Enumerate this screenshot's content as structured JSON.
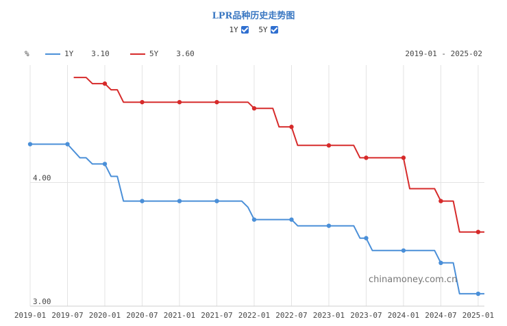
{
  "title": "LPR品种历史走势图",
  "toggles": [
    {
      "label": "1Y",
      "checked": true
    },
    {
      "label": "5Y",
      "checked": true
    }
  ],
  "unit": "%",
  "date_range": "2019-01 - 2025-02",
  "watermark": "chinamoney.com.cn",
  "legend": [
    {
      "name": "1Y",
      "value": "3.10",
      "color": "#4a8fd8"
    },
    {
      "name": "5Y",
      "value": "3.60",
      "color": "#d62a2a"
    }
  ],
  "chart_data": {
    "type": "line",
    "x_ticks": [
      "2019-01",
      "2019-07",
      "2020-01",
      "2020-07",
      "2021-01",
      "2021-07",
      "2022-01",
      "2022-07",
      "2023-01",
      "2023-07",
      "2024-01",
      "2024-07",
      "2025-01"
    ],
    "y_ticks": [
      {
        "value": 4.0,
        "label": "4.00"
      },
      {
        "value": 3.0,
        "label": "3.00"
      }
    ],
    "xlim": [
      "2019-01",
      "2025-02"
    ],
    "ylim": [
      3.0,
      4.95
    ],
    "grid": true,
    "series": [
      {
        "name": "1Y",
        "color": "#4a8fd8",
        "points": [
          {
            "x": "2019-01",
            "y": 4.31,
            "marker": true
          },
          {
            "x": "2019-07",
            "y": 4.31,
            "marker": true
          },
          {
            "x": "2019-09",
            "y": 4.2
          },
          {
            "x": "2019-10",
            "y": 4.2
          },
          {
            "x": "2019-11",
            "y": 4.15
          },
          {
            "x": "2020-01",
            "y": 4.15,
            "marker": true
          },
          {
            "x": "2020-02",
            "y": 4.05
          },
          {
            "x": "2020-03",
            "y": 4.05
          },
          {
            "x": "2020-04",
            "y": 3.85
          },
          {
            "x": "2020-07",
            "y": 3.85,
            "marker": true
          },
          {
            "x": "2021-01",
            "y": 3.85,
            "marker": true
          },
          {
            "x": "2021-07",
            "y": 3.85,
            "marker": true
          },
          {
            "x": "2021-11",
            "y": 3.85
          },
          {
            "x": "2021-12",
            "y": 3.8
          },
          {
            "x": "2022-01",
            "y": 3.7,
            "marker": true
          },
          {
            "x": "2022-07",
            "y": 3.7,
            "marker": true
          },
          {
            "x": "2022-08",
            "y": 3.65
          },
          {
            "x": "2023-01",
            "y": 3.65,
            "marker": true
          },
          {
            "x": "2023-05",
            "y": 3.65
          },
          {
            "x": "2023-06",
            "y": 3.55
          },
          {
            "x": "2023-07",
            "y": 3.55,
            "marker": true
          },
          {
            "x": "2023-08",
            "y": 3.45
          },
          {
            "x": "2024-01",
            "y": 3.45,
            "marker": true
          },
          {
            "x": "2024-06",
            "y": 3.45
          },
          {
            "x": "2024-07",
            "y": 3.35,
            "marker": true
          },
          {
            "x": "2024-09",
            "y": 3.35
          },
          {
            "x": "2024-10",
            "y": 3.1
          },
          {
            "x": "2025-01",
            "y": 3.1,
            "marker": true
          },
          {
            "x": "2025-02",
            "y": 3.1
          }
        ]
      },
      {
        "name": "5Y",
        "color": "#d62a2a",
        "points": [
          {
            "x": "2019-08",
            "y": 4.85
          },
          {
            "x": "2019-10",
            "y": 4.85
          },
          {
            "x": "2019-11",
            "y": 4.8
          },
          {
            "x": "2020-01",
            "y": 4.8,
            "marker": true
          },
          {
            "x": "2020-02",
            "y": 4.75
          },
          {
            "x": "2020-03",
            "y": 4.75
          },
          {
            "x": "2020-04",
            "y": 4.65
          },
          {
            "x": "2020-07",
            "y": 4.65,
            "marker": true
          },
          {
            "x": "2021-01",
            "y": 4.65,
            "marker": true
          },
          {
            "x": "2021-07",
            "y": 4.65,
            "marker": true
          },
          {
            "x": "2021-12",
            "y": 4.65
          },
          {
            "x": "2022-01",
            "y": 4.6,
            "marker": true
          },
          {
            "x": "2022-04",
            "y": 4.6
          },
          {
            "x": "2022-05",
            "y": 4.45
          },
          {
            "x": "2022-07",
            "y": 4.45,
            "marker": true
          },
          {
            "x": "2022-08",
            "y": 4.3
          },
          {
            "x": "2023-01",
            "y": 4.3,
            "marker": true
          },
          {
            "x": "2023-05",
            "y": 4.3
          },
          {
            "x": "2023-06",
            "y": 4.2
          },
          {
            "x": "2023-07",
            "y": 4.2,
            "marker": true
          },
          {
            "x": "2024-01",
            "y": 4.2,
            "marker": true
          },
          {
            "x": "2024-02",
            "y": 3.95
          },
          {
            "x": "2024-06",
            "y": 3.95
          },
          {
            "x": "2024-07",
            "y": 3.85,
            "marker": true
          },
          {
            "x": "2024-09",
            "y": 3.85
          },
          {
            "x": "2024-10",
            "y": 3.6
          },
          {
            "x": "2025-01",
            "y": 3.6,
            "marker": true
          },
          {
            "x": "2025-02",
            "y": 3.6
          }
        ]
      }
    ]
  }
}
